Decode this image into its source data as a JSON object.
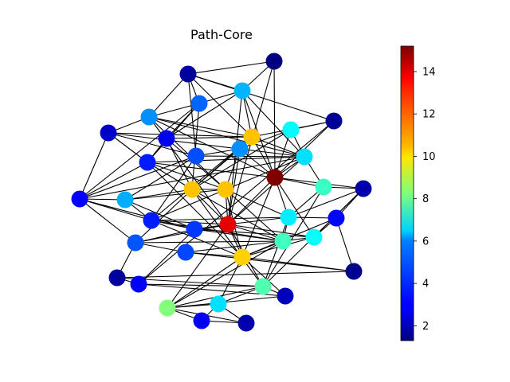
{
  "figure": {
    "title": "Path-Core"
  },
  "graph": {
    "nodes": [
      {
        "id": 0,
        "value": 1.3
      },
      {
        "id": 1,
        "value": 1.7
      },
      {
        "id": 2,
        "value": 5.5
      },
      {
        "id": 3,
        "value": 4.4
      },
      {
        "id": 4,
        "value": 5.0
      },
      {
        "id": 5,
        "value": 2.3
      },
      {
        "id": 6,
        "value": 6.5
      },
      {
        "id": 7,
        "value": 1.6
      },
      {
        "id": 8,
        "value": 2.9
      },
      {
        "id": 9,
        "value": 10.8
      },
      {
        "id": 10,
        "value": 5.0
      },
      {
        "id": 11,
        "value": 4.1
      },
      {
        "id": 12,
        "value": 6.1
      },
      {
        "id": 13,
        "value": 3.4
      },
      {
        "id": 14,
        "value": 15.2
      },
      {
        "id": 15,
        "value": 7.3
      },
      {
        "id": 16,
        "value": 1.9
      },
      {
        "id": 17,
        "value": 3.0
      },
      {
        "id": 18,
        "value": 5.4
      },
      {
        "id": 19,
        "value": 10.8
      },
      {
        "id": 20,
        "value": 10.8
      },
      {
        "id": 21,
        "value": 3.4
      },
      {
        "id": 22,
        "value": 6.3
      },
      {
        "id": 23,
        "value": 3.1
      },
      {
        "id": 24,
        "value": 6.6
      },
      {
        "id": 25,
        "value": 13.8
      },
      {
        "id": 26,
        "value": 3.8
      },
      {
        "id": 27,
        "value": 4.2
      },
      {
        "id": 28,
        "value": 7.4
      },
      {
        "id": 29,
        "value": 4.0
      },
      {
        "id": 30,
        "value": 10.6
      },
      {
        "id": 31,
        "value": 1.5
      },
      {
        "id": 32,
        "value": 1.7
      },
      {
        "id": 33,
        "value": 3.0
      },
      {
        "id": 34,
        "value": 7.6
      },
      {
        "id": 35,
        "value": 2.1
      },
      {
        "id": 36,
        "value": 8.3
      },
      {
        "id": 37,
        "value": 6.1
      },
      {
        "id": 38,
        "value": 2.9
      },
      {
        "id": 39,
        "value": 1.9
      }
    ],
    "edges": [
      [
        0,
        1
      ],
      [
        0,
        2
      ],
      [
        0,
        14
      ],
      [
        1,
        2
      ],
      [
        1,
        3
      ],
      [
        1,
        4
      ],
      [
        1,
        11
      ],
      [
        1,
        7
      ],
      [
        2,
        12
      ],
      [
        2,
        14
      ],
      [
        2,
        9
      ],
      [
        2,
        3
      ],
      [
        3,
        4
      ],
      [
        3,
        8
      ],
      [
        3,
        19
      ],
      [
        3,
        13
      ],
      [
        4,
        14
      ],
      [
        4,
        12
      ],
      [
        4,
        20
      ],
      [
        4,
        25
      ],
      [
        5,
        9
      ],
      [
        5,
        4
      ],
      [
        5,
        13
      ],
      [
        5,
        11
      ],
      [
        5,
        12
      ],
      [
        6,
        14
      ],
      [
        6,
        12
      ],
      [
        6,
        10
      ],
      [
        7,
        14
      ],
      [
        7,
        9
      ],
      [
        7,
        6
      ],
      [
        7,
        33
      ],
      [
        8,
        9
      ],
      [
        8,
        13
      ],
      [
        8,
        19
      ],
      [
        8,
        2
      ],
      [
        9,
        12
      ],
      [
        9,
        14
      ],
      [
        9,
        10
      ],
      [
        10,
        14
      ],
      [
        10,
        20
      ],
      [
        10,
        11
      ],
      [
        11,
        12
      ],
      [
        11,
        18
      ],
      [
        11,
        21
      ],
      [
        12,
        13
      ],
      [
        12,
        15
      ],
      [
        12,
        14
      ],
      [
        13,
        14
      ],
      [
        13,
        20
      ],
      [
        13,
        19
      ],
      [
        13,
        17
      ],
      [
        14,
        15
      ],
      [
        14,
        16
      ],
      [
        14,
        22
      ],
      [
        14,
        25
      ],
      [
        15,
        16
      ],
      [
        15,
        22
      ],
      [
        16,
        23
      ],
      [
        16,
        22
      ],
      [
        16,
        24
      ],
      [
        17,
        18
      ],
      [
        17,
        12
      ],
      [
        17,
        21
      ],
      [
        18,
        19
      ],
      [
        18,
        20
      ],
      [
        18,
        21
      ],
      [
        19,
        20
      ],
      [
        19,
        25
      ],
      [
        20,
        22
      ],
      [
        20,
        25
      ],
      [
        21,
        22
      ],
      [
        21,
        25
      ],
      [
        22,
        23
      ],
      [
        22,
        25
      ],
      [
        23,
        24
      ],
      [
        23,
        31
      ],
      [
        24,
        25
      ],
      [
        24,
        26
      ],
      [
        25,
        26
      ],
      [
        25,
        27
      ],
      [
        26,
        27
      ],
      [
        26,
        28
      ],
      [
        27,
        28
      ],
      [
        27,
        29
      ],
      [
        28,
        29
      ],
      [
        28,
        30
      ],
      [
        29,
        30
      ],
      [
        30,
        31
      ],
      [
        30,
        35
      ],
      [
        31,
        32
      ],
      [
        32,
        33
      ],
      [
        32,
        34
      ],
      [
        33,
        34
      ],
      [
        33,
        35
      ],
      [
        34,
        35
      ],
      [
        34,
        36
      ],
      [
        35,
        36
      ],
      [
        36,
        37
      ],
      [
        36,
        38
      ],
      [
        37,
        38
      ],
      [
        37,
        39
      ],
      [
        38,
        39
      ],
      [
        25,
        30
      ],
      [
        25,
        34
      ],
      [
        25,
        36
      ],
      [
        19,
        28
      ],
      [
        19,
        27
      ],
      [
        20,
        30
      ],
      [
        21,
        28
      ],
      [
        17,
        27
      ],
      [
        13,
        30
      ],
      [
        9,
        19
      ],
      [
        8,
        20
      ],
      [
        5,
        17
      ],
      [
        17,
        26
      ],
      [
        18,
        26
      ],
      [
        21,
        26
      ],
      [
        29,
        31
      ],
      [
        27,
        32
      ],
      [
        26,
        33
      ],
      [
        28,
        36
      ],
      [
        30,
        36
      ],
      [
        30,
        37
      ],
      [
        34,
        37
      ],
      [
        36,
        39
      ],
      [
        22,
        34
      ],
      [
        15,
        34
      ],
      [
        16,
        34
      ],
      [
        24,
        30
      ],
      [
        23,
        30
      ],
      [
        9,
        21
      ],
      [
        4,
        9
      ],
      [
        3,
        17
      ],
      [
        11,
        17
      ],
      [
        12,
        21
      ],
      [
        20,
        28
      ],
      [
        25,
        28
      ],
      [
        24,
        28
      ],
      [
        22,
        28
      ],
      [
        14,
        24
      ],
      [
        6,
        19
      ],
      [
        10,
        19
      ],
      [
        10,
        25
      ],
      [
        2,
        25
      ],
      [
        0,
        25
      ],
      [
        1,
        9
      ],
      [
        12,
        25
      ],
      [
        14,
        30
      ],
      [
        19,
        34
      ],
      [
        21,
        30
      ]
    ]
  },
  "colorbar": {
    "min": 1.3,
    "max": 15.2,
    "ticks": [
      "2",
      "4",
      "6",
      "8",
      "10",
      "12",
      "14"
    ],
    "tick_values": [
      2,
      4,
      6,
      8,
      10,
      12,
      14
    ],
    "colormap": "jet"
  }
}
